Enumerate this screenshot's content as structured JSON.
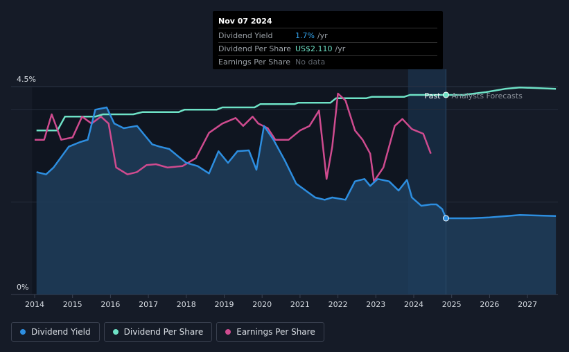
{
  "tooltip": {
    "date": "Nov 07 2024",
    "rows": [
      {
        "label": "Dividend Yield",
        "value": "1.7%",
        "unit": "/yr"
      },
      {
        "label": "Dividend Per Share",
        "value": "US$2.110",
        "unit": "/yr"
      },
      {
        "label": "Earnings Per Share",
        "value": "No data",
        "unit": ""
      }
    ]
  },
  "legend": [
    {
      "label": "Dividend Yield",
      "color": "#2d8ee0"
    },
    {
      "label": "Dividend Per Share",
      "color": "#6ee2c6"
    },
    {
      "label": "Earnings Per Share",
      "color": "#cf4b8f"
    }
  ],
  "chart_data": {
    "type": "line",
    "x_ticks": [
      "2014",
      "2015",
      "2016",
      "2017",
      "2018",
      "2019",
      "2020",
      "2021",
      "2022",
      "2023",
      "2024",
      "2025",
      "2026",
      "2027"
    ],
    "y_labels": {
      "top": "4.5%",
      "bottom": "0%"
    },
    "ylim": [
      0,
      4.5
    ],
    "xlim": [
      2013.93,
      2027.75
    ],
    "past_label": "Past",
    "forecast_label": "Analysts Forecasts",
    "forecast_start": 2024.85,
    "highlight_start": 2023.85,
    "series": [
      {
        "name": "Dividend Yield",
        "color": "#2d8ee0",
        "axis": "percent",
        "filled": true,
        "points": [
          [
            2014.05,
            2.65
          ],
          [
            2014.3,
            2.6
          ],
          [
            2014.5,
            2.75
          ],
          [
            2014.9,
            3.2
          ],
          [
            2015.2,
            3.3
          ],
          [
            2015.4,
            3.35
          ],
          [
            2015.6,
            4.0
          ],
          [
            2015.9,
            4.05
          ],
          [
            2016.1,
            3.7
          ],
          [
            2016.35,
            3.6
          ],
          [
            2016.7,
            3.65
          ],
          [
            2016.9,
            3.45
          ],
          [
            2017.1,
            3.25
          ],
          [
            2017.3,
            3.2
          ],
          [
            2017.55,
            3.15
          ],
          [
            2017.8,
            2.98
          ],
          [
            2018.0,
            2.85
          ],
          [
            2018.3,
            2.78
          ],
          [
            2018.6,
            2.62
          ],
          [
            2018.85,
            3.1
          ],
          [
            2019.1,
            2.85
          ],
          [
            2019.35,
            3.1
          ],
          [
            2019.65,
            3.12
          ],
          [
            2019.85,
            2.7
          ],
          [
            2020.05,
            3.65
          ],
          [
            2020.3,
            3.35
          ],
          [
            2020.6,
            2.9
          ],
          [
            2020.9,
            2.4
          ],
          [
            2021.15,
            2.25
          ],
          [
            2021.4,
            2.1
          ],
          [
            2021.65,
            2.05
          ],
          [
            2021.85,
            2.1
          ],
          [
            2022.2,
            2.05
          ],
          [
            2022.45,
            2.45
          ],
          [
            2022.7,
            2.5
          ],
          [
            2022.85,
            2.35
          ],
          [
            2023.05,
            2.5
          ],
          [
            2023.35,
            2.45
          ],
          [
            2023.6,
            2.25
          ],
          [
            2023.82,
            2.48
          ],
          [
            2023.95,
            2.1
          ],
          [
            2024.2,
            1.92
          ],
          [
            2024.45,
            1.95
          ],
          [
            2024.6,
            1.95
          ],
          [
            2024.75,
            1.85
          ],
          [
            2024.85,
            1.65
          ],
          [
            2025.5,
            1.65
          ],
          [
            2026.0,
            1.67
          ],
          [
            2026.8,
            1.72
          ],
          [
            2027.75,
            1.7
          ]
        ]
      },
      {
        "name": "Dividend Per Share",
        "color": "#6ee2c6",
        "axis": "dps",
        "points": [
          [
            2014.05,
            3.55
          ],
          [
            2014.6,
            3.55
          ],
          [
            2014.8,
            3.85
          ],
          [
            2015.6,
            3.85
          ],
          [
            2015.8,
            3.9
          ],
          [
            2016.6,
            3.9
          ],
          [
            2016.85,
            3.95
          ],
          [
            2017.8,
            3.95
          ],
          [
            2017.95,
            4.0
          ],
          [
            2018.8,
            4.0
          ],
          [
            2018.95,
            4.05
          ],
          [
            2019.8,
            4.05
          ],
          [
            2019.95,
            4.12
          ],
          [
            2020.85,
            4.12
          ],
          [
            2020.95,
            4.15
          ],
          [
            2021.8,
            4.15
          ],
          [
            2021.95,
            4.25
          ],
          [
            2022.75,
            4.25
          ],
          [
            2022.9,
            4.28
          ],
          [
            2023.75,
            4.28
          ],
          [
            2023.9,
            4.32
          ],
          [
            2024.85,
            4.32
          ],
          [
            2025.3,
            4.32
          ],
          [
            2025.9,
            4.38
          ],
          [
            2026.4,
            4.45
          ],
          [
            2026.8,
            4.48
          ],
          [
            2027.2,
            4.47
          ],
          [
            2027.75,
            4.45
          ]
        ]
      },
      {
        "name": "Earnings Per Share",
        "color": "#cf4b8f",
        "axis": "eps",
        "points": [
          [
            2014.0,
            3.35
          ],
          [
            2014.25,
            3.35
          ],
          [
            2014.45,
            3.9
          ],
          [
            2014.7,
            3.35
          ],
          [
            2015.0,
            3.4
          ],
          [
            2015.25,
            3.85
          ],
          [
            2015.5,
            3.7
          ],
          [
            2015.75,
            3.85
          ],
          [
            2015.95,
            3.7
          ],
          [
            2016.15,
            2.75
          ],
          [
            2016.45,
            2.6
          ],
          [
            2016.7,
            2.65
          ],
          [
            2016.95,
            2.8
          ],
          [
            2017.2,
            2.82
          ],
          [
            2017.5,
            2.75
          ],
          [
            2017.9,
            2.78
          ],
          [
            2018.25,
            2.95
          ],
          [
            2018.6,
            3.5
          ],
          [
            2018.95,
            3.7
          ],
          [
            2019.3,
            3.82
          ],
          [
            2019.5,
            3.65
          ],
          [
            2019.75,
            3.85
          ],
          [
            2019.9,
            3.7
          ],
          [
            2020.15,
            3.6
          ],
          [
            2020.35,
            3.35
          ],
          [
            2020.7,
            3.35
          ],
          [
            2021.0,
            3.55
          ],
          [
            2021.25,
            3.65
          ],
          [
            2021.5,
            3.98
          ],
          [
            2021.7,
            2.5
          ],
          [
            2021.85,
            3.2
          ],
          [
            2022.0,
            4.35
          ],
          [
            2022.2,
            4.2
          ],
          [
            2022.45,
            3.55
          ],
          [
            2022.65,
            3.35
          ],
          [
            2022.85,
            3.05
          ],
          [
            2022.95,
            2.45
          ],
          [
            2023.2,
            2.75
          ],
          [
            2023.5,
            3.65
          ],
          [
            2023.7,
            3.8
          ],
          [
            2023.95,
            3.58
          ],
          [
            2024.25,
            3.48
          ],
          [
            2024.45,
            3.05
          ]
        ]
      }
    ]
  }
}
